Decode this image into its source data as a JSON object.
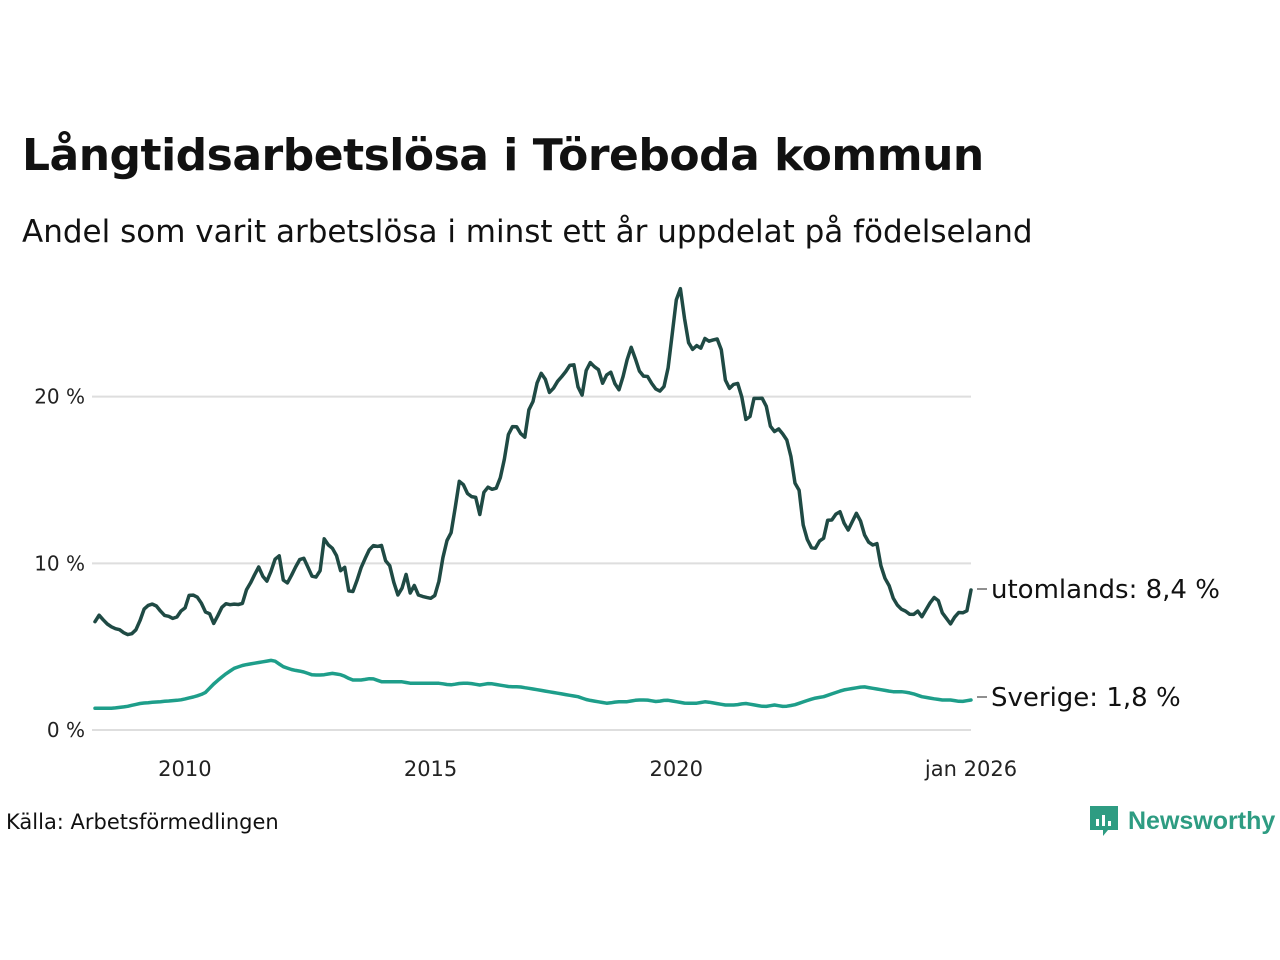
{
  "header": {
    "title": "Långtidsarbetslösa i Töreboda kommun",
    "subtitle": "Andel som varit arbetslösa i minst ett år uppdelat på födelseland"
  },
  "footer": {
    "source": "Källa: Arbetsförmedlingen",
    "logo_text": "Newsworthy"
  },
  "colors": {
    "utomlands": "#1f4a44",
    "sverige": "#1e9e8a",
    "grid": "#dedede",
    "brand": "#2e9c82"
  },
  "chart_data": {
    "type": "line",
    "title": "Långtidsarbetslösa i Töreboda kommun",
    "subtitle": "Andel som varit arbetslösa i minst ett år uppdelat på födelseland",
    "xlabel": "",
    "ylabel": "",
    "x_start": "2008-03",
    "x_end": "2026-01",
    "xlim": [
      2008.17,
      2026.0
    ],
    "ylim": [
      0,
      27
    ],
    "y_ticks": [
      {
        "value": 0,
        "label": "0 %"
      },
      {
        "value": 10,
        "label": "10 %"
      },
      {
        "value": 20,
        "label": "20 %"
      }
    ],
    "x_ticks": [
      {
        "value": 2010,
        "label": "2010"
      },
      {
        "value": 2015,
        "label": "2015"
      },
      {
        "value": 2020,
        "label": "2020"
      },
      {
        "value": 2026,
        "label": "jan 2026"
      }
    ],
    "grid": true,
    "series": [
      {
        "name": "utomlands",
        "label": "utomlands: 8,4 %",
        "last_value": 8.4,
        "keypoints": [
          [
            2008.17,
            6.5
          ],
          [
            2008.25,
            6.9
          ],
          [
            2008.4,
            6.4
          ],
          [
            2008.55,
            6.1
          ],
          [
            2008.7,
            6.0
          ],
          [
            2008.8,
            5.7
          ],
          [
            2008.95,
            5.8
          ],
          [
            2009.05,
            6.2
          ],
          [
            2009.15,
            7.2
          ],
          [
            2009.3,
            7.6
          ],
          [
            2009.45,
            7.4
          ],
          [
            2009.55,
            6.9
          ],
          [
            2009.7,
            6.8
          ],
          [
            2009.8,
            6.6
          ],
          [
            2009.9,
            7.1
          ],
          [
            2010.0,
            7.3
          ],
          [
            2010.1,
            8.2
          ],
          [
            2010.3,
            7.9
          ],
          [
            2010.4,
            7.1
          ],
          [
            2010.5,
            7.0
          ],
          [
            2010.6,
            6.3
          ],
          [
            2010.7,
            7.1
          ],
          [
            2010.8,
            7.6
          ],
          [
            2010.95,
            7.5
          ],
          [
            2011.05,
            7.6
          ],
          [
            2011.15,
            7.4
          ],
          [
            2011.25,
            8.4
          ],
          [
            2011.35,
            8.9
          ],
          [
            2011.5,
            9.8
          ],
          [
            2011.65,
            8.8
          ],
          [
            2011.75,
            9.5
          ],
          [
            2011.9,
            10.8
          ],
          [
            2012.0,
            9.0
          ],
          [
            2012.1,
            8.8
          ],
          [
            2012.2,
            9.5
          ],
          [
            2012.35,
            10.3
          ],
          [
            2012.45,
            10.3
          ],
          [
            2012.55,
            9.3
          ],
          [
            2012.65,
            9.1
          ],
          [
            2012.75,
            9.5
          ],
          [
            2012.85,
            11.8
          ],
          [
            2012.95,
            10.8
          ],
          [
            2013.05,
            11.0
          ],
          [
            2013.15,
            9.5
          ],
          [
            2013.25,
            9.8
          ],
          [
            2013.35,
            8.1
          ],
          [
            2013.45,
            8.4
          ],
          [
            2013.55,
            9.5
          ],
          [
            2013.7,
            10.5
          ],
          [
            2013.8,
            11.1
          ],
          [
            2013.9,
            11.0
          ],
          [
            2014.0,
            11.1
          ],
          [
            2014.1,
            10.0
          ],
          [
            2014.2,
            9.8
          ],
          [
            2014.3,
            8.0
          ],
          [
            2014.4,
            8.3
          ],
          [
            2014.5,
            9.4
          ],
          [
            2014.55,
            7.9
          ],
          [
            2014.65,
            8.8
          ],
          [
            2014.75,
            8.1
          ],
          [
            2014.85,
            8.0
          ],
          [
            2015.0,
            7.9
          ],
          [
            2015.1,
            8.1
          ],
          [
            2015.2,
            9.3
          ],
          [
            2015.3,
            11.3
          ],
          [
            2015.4,
            11.5
          ],
          [
            2015.5,
            13.3
          ],
          [
            2015.6,
            15.2
          ],
          [
            2015.7,
            14.5
          ],
          [
            2015.8,
            13.9
          ],
          [
            2015.9,
            14.2
          ],
          [
            2016.0,
            12.9
          ],
          [
            2016.1,
            14.5
          ],
          [
            2016.2,
            14.6
          ],
          [
            2016.3,
            14.3
          ],
          [
            2016.4,
            14.9
          ],
          [
            2016.5,
            16.2
          ],
          [
            2016.6,
            18.0
          ],
          [
            2016.7,
            18.3
          ],
          [
            2016.8,
            18.1
          ],
          [
            2016.9,
            17.2
          ],
          [
            2017.0,
            19.2
          ],
          [
            2017.1,
            19.8
          ],
          [
            2017.2,
            21.3
          ],
          [
            2017.3,
            21.5
          ],
          [
            2017.4,
            20.2
          ],
          [
            2017.5,
            20.5
          ],
          [
            2017.6,
            21.0
          ],
          [
            2017.7,
            21.3
          ],
          [
            2017.8,
            21.7
          ],
          [
            2017.9,
            22.2
          ],
          [
            2018.0,
            20.6
          ],
          [
            2018.1,
            20.0
          ],
          [
            2018.2,
            22.3
          ],
          [
            2018.3,
            21.8
          ],
          [
            2018.4,
            21.8
          ],
          [
            2018.5,
            20.8
          ],
          [
            2018.6,
            21.4
          ],
          [
            2018.7,
            21.5
          ],
          [
            2018.8,
            20.1
          ],
          [
            2018.9,
            21.0
          ],
          [
            2019.0,
            22.2
          ],
          [
            2019.1,
            23.1
          ],
          [
            2019.2,
            21.9
          ],
          [
            2019.3,
            21.2
          ],
          [
            2019.4,
            21.3
          ],
          [
            2019.5,
            20.8
          ],
          [
            2019.6,
            20.4
          ],
          [
            2019.7,
            20.3
          ],
          [
            2019.8,
            20.9
          ],
          [
            2019.9,
            23.3
          ],
          [
            2020.0,
            25.8
          ],
          [
            2020.1,
            26.6
          ],
          [
            2020.2,
            23.8
          ],
          [
            2020.3,
            22.7
          ],
          [
            2020.4,
            23.1
          ],
          [
            2020.5,
            22.9
          ],
          [
            2020.6,
            23.6
          ],
          [
            2020.7,
            23.2
          ],
          [
            2020.8,
            23.6
          ],
          [
            2020.9,
            23.2
          ],
          [
            2021.0,
            21.0
          ],
          [
            2021.1,
            20.4
          ],
          [
            2021.2,
            20.9
          ],
          [
            2021.3,
            20.7
          ],
          [
            2021.4,
            18.6
          ],
          [
            2021.5,
            18.8
          ],
          [
            2021.6,
            20.1
          ],
          [
            2021.7,
            19.8
          ],
          [
            2021.8,
            20.0
          ],
          [
            2021.9,
            18.3
          ],
          [
            2022.0,
            17.9
          ],
          [
            2022.1,
            18.1
          ],
          [
            2022.2,
            17.6
          ],
          [
            2022.3,
            17.2
          ],
          [
            2022.4,
            14.9
          ],
          [
            2022.5,
            14.4
          ],
          [
            2022.6,
            11.9
          ],
          [
            2022.7,
            11.2
          ],
          [
            2022.8,
            10.7
          ],
          [
            2022.9,
            11.3
          ],
          [
            2023.0,
            11.5
          ],
          [
            2023.1,
            12.8
          ],
          [
            2023.2,
            12.5
          ],
          [
            2023.3,
            13.4
          ],
          [
            2023.4,
            12.5
          ],
          [
            2023.5,
            12.0
          ],
          [
            2023.6,
            12.6
          ],
          [
            2023.7,
            13.2
          ],
          [
            2023.8,
            11.9
          ],
          [
            2023.9,
            11.3
          ],
          [
            2024.0,
            11.1
          ],
          [
            2024.1,
            11.2
          ],
          [
            2024.2,
            9.2
          ],
          [
            2024.3,
            9.0
          ],
          [
            2024.4,
            8.0
          ],
          [
            2024.5,
            7.5
          ],
          [
            2024.6,
            7.2
          ],
          [
            2024.7,
            7.1
          ],
          [
            2024.8,
            6.8
          ],
          [
            2024.9,
            7.2
          ],
          [
            2025.0,
            6.8
          ],
          [
            2025.1,
            7.3
          ],
          [
            2025.2,
            7.8
          ],
          [
            2025.3,
            8.1
          ],
          [
            2025.4,
            7.1
          ],
          [
            2025.5,
            6.7
          ],
          [
            2025.6,
            6.3
          ],
          [
            2025.7,
            7.0
          ],
          [
            2025.8,
            7.1
          ],
          [
            2025.9,
            6.9
          ],
          [
            2026.0,
            8.4
          ]
        ]
      },
      {
        "name": "Sverige",
        "label": "Sverige: 1,8 %",
        "last_value": 1.8,
        "keypoints": [
          [
            2008.17,
            1.3
          ],
          [
            2008.5,
            1.3
          ],
          [
            2008.8,
            1.4
          ],
          [
            2009.1,
            1.6
          ],
          [
            2009.5,
            1.7
          ],
          [
            2009.9,
            1.8
          ],
          [
            2010.2,
            2.0
          ],
          [
            2010.4,
            2.2
          ],
          [
            2010.6,
            2.8
          ],
          [
            2010.8,
            3.3
          ],
          [
            2011.0,
            3.7
          ],
          [
            2011.2,
            3.9
          ],
          [
            2011.4,
            4.0
          ],
          [
            2011.6,
            4.1
          ],
          [
            2011.8,
            4.2
          ],
          [
            2012.0,
            3.8
          ],
          [
            2012.2,
            3.6
          ],
          [
            2012.4,
            3.5
          ],
          [
            2012.6,
            3.3
          ],
          [
            2012.8,
            3.3
          ],
          [
            2013.0,
            3.4
          ],
          [
            2013.2,
            3.3
          ],
          [
            2013.4,
            3.0
          ],
          [
            2013.6,
            3.0
          ],
          [
            2013.8,
            3.1
          ],
          [
            2014.0,
            2.9
          ],
          [
            2014.2,
            2.9
          ],
          [
            2014.4,
            2.9
          ],
          [
            2014.6,
            2.8
          ],
          [
            2014.8,
            2.8
          ],
          [
            2015.0,
            2.8
          ],
          [
            2015.2,
            2.8
          ],
          [
            2015.4,
            2.7
          ],
          [
            2015.6,
            2.8
          ],
          [
            2015.8,
            2.8
          ],
          [
            2016.0,
            2.7
          ],
          [
            2016.2,
            2.8
          ],
          [
            2016.4,
            2.7
          ],
          [
            2016.6,
            2.6
          ],
          [
            2016.8,
            2.6
          ],
          [
            2017.0,
            2.5
          ],
          [
            2017.2,
            2.4
          ],
          [
            2017.4,
            2.3
          ],
          [
            2017.6,
            2.2
          ],
          [
            2017.8,
            2.1
          ],
          [
            2018.0,
            2.0
          ],
          [
            2018.2,
            1.8
          ],
          [
            2018.4,
            1.7
          ],
          [
            2018.6,
            1.6
          ],
          [
            2018.8,
            1.7
          ],
          [
            2019.0,
            1.7
          ],
          [
            2019.2,
            1.8
          ],
          [
            2019.4,
            1.8
          ],
          [
            2019.6,
            1.7
          ],
          [
            2019.8,
            1.8
          ],
          [
            2020.0,
            1.7
          ],
          [
            2020.2,
            1.6
          ],
          [
            2020.4,
            1.6
          ],
          [
            2020.6,
            1.7
          ],
          [
            2020.8,
            1.6
          ],
          [
            2021.0,
            1.5
          ],
          [
            2021.2,
            1.5
          ],
          [
            2021.4,
            1.6
          ],
          [
            2021.6,
            1.5
          ],
          [
            2021.8,
            1.4
          ],
          [
            2022.0,
            1.5
          ],
          [
            2022.2,
            1.4
          ],
          [
            2022.4,
            1.5
          ],
          [
            2022.6,
            1.7
          ],
          [
            2022.8,
            1.9
          ],
          [
            2023.0,
            2.0
          ],
          [
            2023.2,
            2.2
          ],
          [
            2023.4,
            2.4
          ],
          [
            2023.6,
            2.5
          ],
          [
            2023.8,
            2.6
          ],
          [
            2024.0,
            2.5
          ],
          [
            2024.2,
            2.4
          ],
          [
            2024.4,
            2.3
          ],
          [
            2024.6,
            2.3
          ],
          [
            2024.8,
            2.2
          ],
          [
            2025.0,
            2.0
          ],
          [
            2025.2,
            1.9
          ],
          [
            2025.4,
            1.8
          ],
          [
            2025.6,
            1.8
          ],
          [
            2025.8,
            1.7
          ],
          [
            2026.0,
            1.8
          ]
        ]
      }
    ]
  }
}
